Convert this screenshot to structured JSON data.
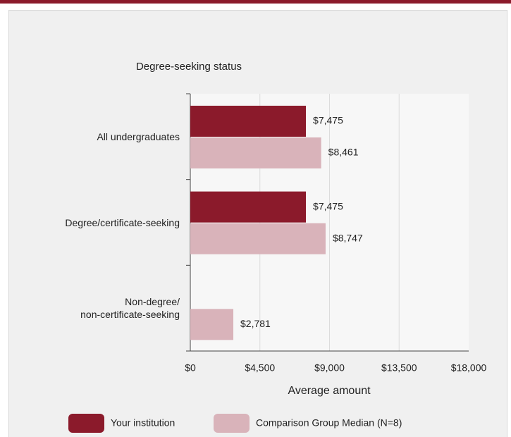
{
  "chart_data": {
    "type": "barh",
    "title": "Degree-seeking status",
    "x_label": "Average amount",
    "categories": [
      "All undergraduates",
      "Degree/certificate-seeking",
      "Non-degree/\nnon-certificate-seeking"
    ],
    "series": [
      {
        "name": "Your institution",
        "color": "#8b1a2b",
        "values": [
          7475,
          7475,
          null
        ],
        "value_labels": [
          "$7,475",
          "$7,475",
          null
        ]
      },
      {
        "name": "Comparison Group Median (N=8)",
        "color": "#d9b3ba",
        "values": [
          8461,
          8747,
          2781
        ],
        "value_labels": [
          "$8,461",
          "$8,747",
          "$2,781"
        ]
      }
    ],
    "xlim": [
      0,
      18000
    ],
    "xticks": [
      {
        "value": 0,
        "label": "$0"
      },
      {
        "value": 4500,
        "label": "$4,500"
      },
      {
        "value": 9000,
        "label": "$9,000"
      },
      {
        "value": 13500,
        "label": "$13,500"
      },
      {
        "value": 18000,
        "label": "$18,000"
      }
    ],
    "grid": true,
    "legend": "bottom"
  }
}
